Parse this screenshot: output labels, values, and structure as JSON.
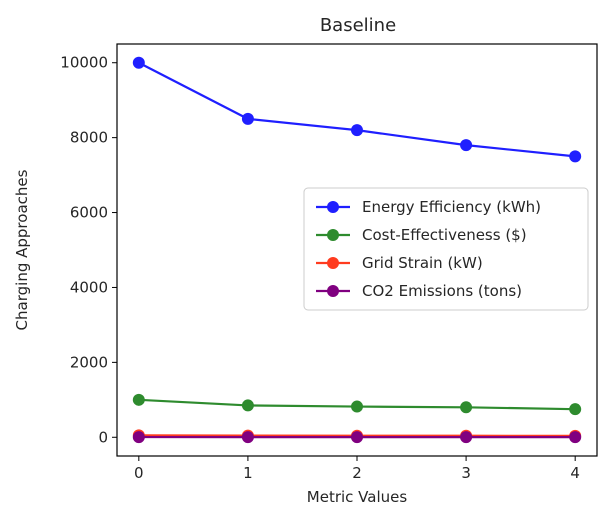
{
  "chart_data": {
    "type": "line",
    "title": "Baseline",
    "xlabel": "Metric Values",
    "ylabel": "Charging Approaches",
    "x": [
      0,
      1,
      2,
      3,
      4
    ],
    "xticks": [
      "0",
      "1",
      "2",
      "3",
      "4"
    ],
    "yticks": [
      "0",
      "2000",
      "4000",
      "6000",
      "8000",
      "10000"
    ],
    "ytick_values": [
      0,
      2000,
      4000,
      6000,
      8000,
      10000
    ],
    "xlim": [
      -0.2,
      4.2
    ],
    "ylim": [
      -500,
      10500
    ],
    "grid": false,
    "legend_position": "center-right",
    "series": [
      {
        "name": "Energy Efficiency (kWh)",
        "color": "#1f1fff",
        "values": [
          10000,
          8500,
          8200,
          7800,
          7500
        ]
      },
      {
        "name": "Cost-Effectiveness ($)",
        "color": "#2e8b2e",
        "values": [
          1000,
          850,
          820,
          800,
          750
        ]
      },
      {
        "name": "Grid Strain (kW)",
        "color": "#ff3b1f",
        "values": [
          50,
          45,
          42,
          40,
          38
        ]
      },
      {
        "name": "CO2 Emissions (tons)",
        "color": "#800080",
        "values": [
          5,
          4.5,
          4.2,
          4,
          3.8
        ]
      }
    ]
  }
}
